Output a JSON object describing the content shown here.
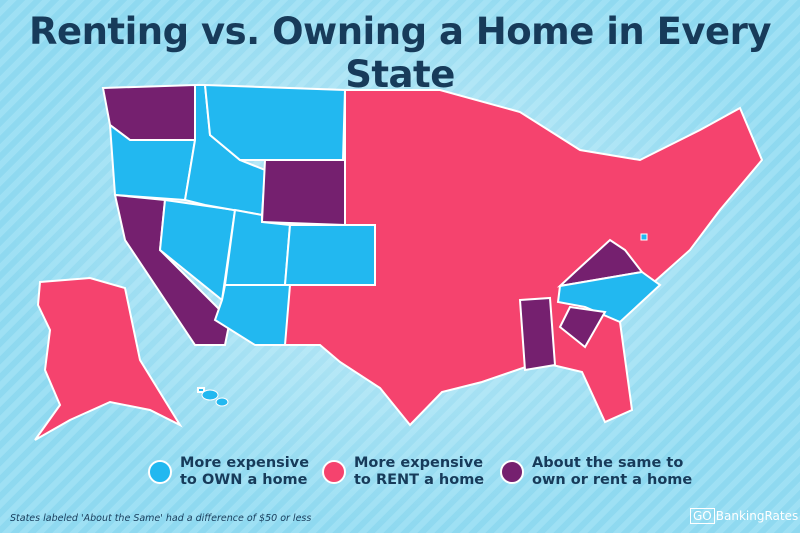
{
  "title": "Renting vs. Owning a Home in Every State",
  "colors": {
    "own": "#22b8f0",
    "rent": "#f5436e",
    "same": "#75206f",
    "background": "#9ee0f4"
  },
  "legend": [
    {
      "key": "own",
      "label": "More expensive\nto OWN a home"
    },
    {
      "key": "rent",
      "label": "More expensive\nto RENT a home"
    },
    {
      "key": "same",
      "label": "About the same to\nown or rent a home"
    }
  ],
  "states": {
    "own": [
      "OR",
      "ID",
      "MT",
      "NV",
      "UT",
      "AZ",
      "CO",
      "NC",
      "HI",
      "DC"
    ],
    "same": [
      "WA",
      "WY",
      "CA",
      "VA",
      "AL",
      "SC"
    ],
    "rent": [
      "AK",
      "all other states"
    ]
  },
  "footnote": "States labeled 'About the Same' had a difference of $50 or less",
  "logo": {
    "go": "GO",
    "name": "BankingRates"
  }
}
